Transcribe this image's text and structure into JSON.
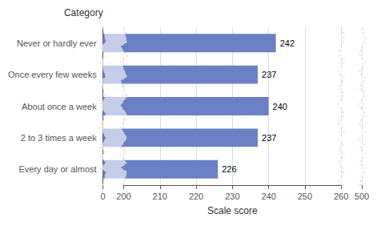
{
  "chart_data": {
    "type": "bar",
    "orientation": "horizontal",
    "categories": [
      "Every day or almost",
      "2 to 3 times a week",
      "About once a week",
      "Once every few weeks",
      "Never or hardly ever"
    ],
    "values": [
      226,
      237,
      240,
      237,
      242
    ],
    "color": "#6b80c4",
    "xlabel": "Scale score",
    "ylabel": "Category",
    "xlim": [
      0,
      500
    ],
    "xticks": [
      0,
      200,
      210,
      220,
      230,
      240,
      250,
      260,
      500
    ],
    "grid": true,
    "data_labels": true
  }
}
